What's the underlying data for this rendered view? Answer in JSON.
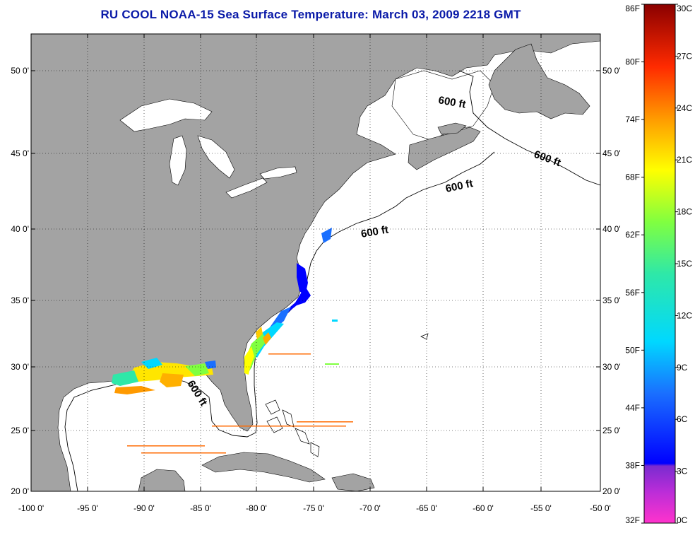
{
  "title": "RU COOL  NOAA-15  Sea Surface Temperature:  March 03, 2009 2218 GMT",
  "axes": {
    "lat_labels": [
      "50 0'",
      "45 0'",
      "40 0'",
      "35 0'",
      "30 0'",
      "25 0'",
      "20 0'"
    ],
    "lon_labels": [
      "-100 0'",
      "-95 0'",
      "-90 0'",
      "-85 0'",
      "-80 0'",
      "-75 0'",
      "-70 0'",
      "-65 0'",
      "-60 0'",
      "-55 0'",
      "-50 0'"
    ]
  },
  "contour_label": "600 ft",
  "colorbar": {
    "fahrenheit": [
      "86F",
      "80F",
      "74F",
      "68F",
      "62F",
      "56F",
      "50F",
      "44F",
      "38F",
      "32F"
    ],
    "celsius": [
      "30C",
      "27C",
      "24C",
      "21C",
      "18C",
      "15C",
      "12C",
      "9C",
      "6C",
      "3C",
      "0C"
    ]
  },
  "colors": {
    "land": "#a3a3a3",
    "title": "#0a1aa8"
  }
}
